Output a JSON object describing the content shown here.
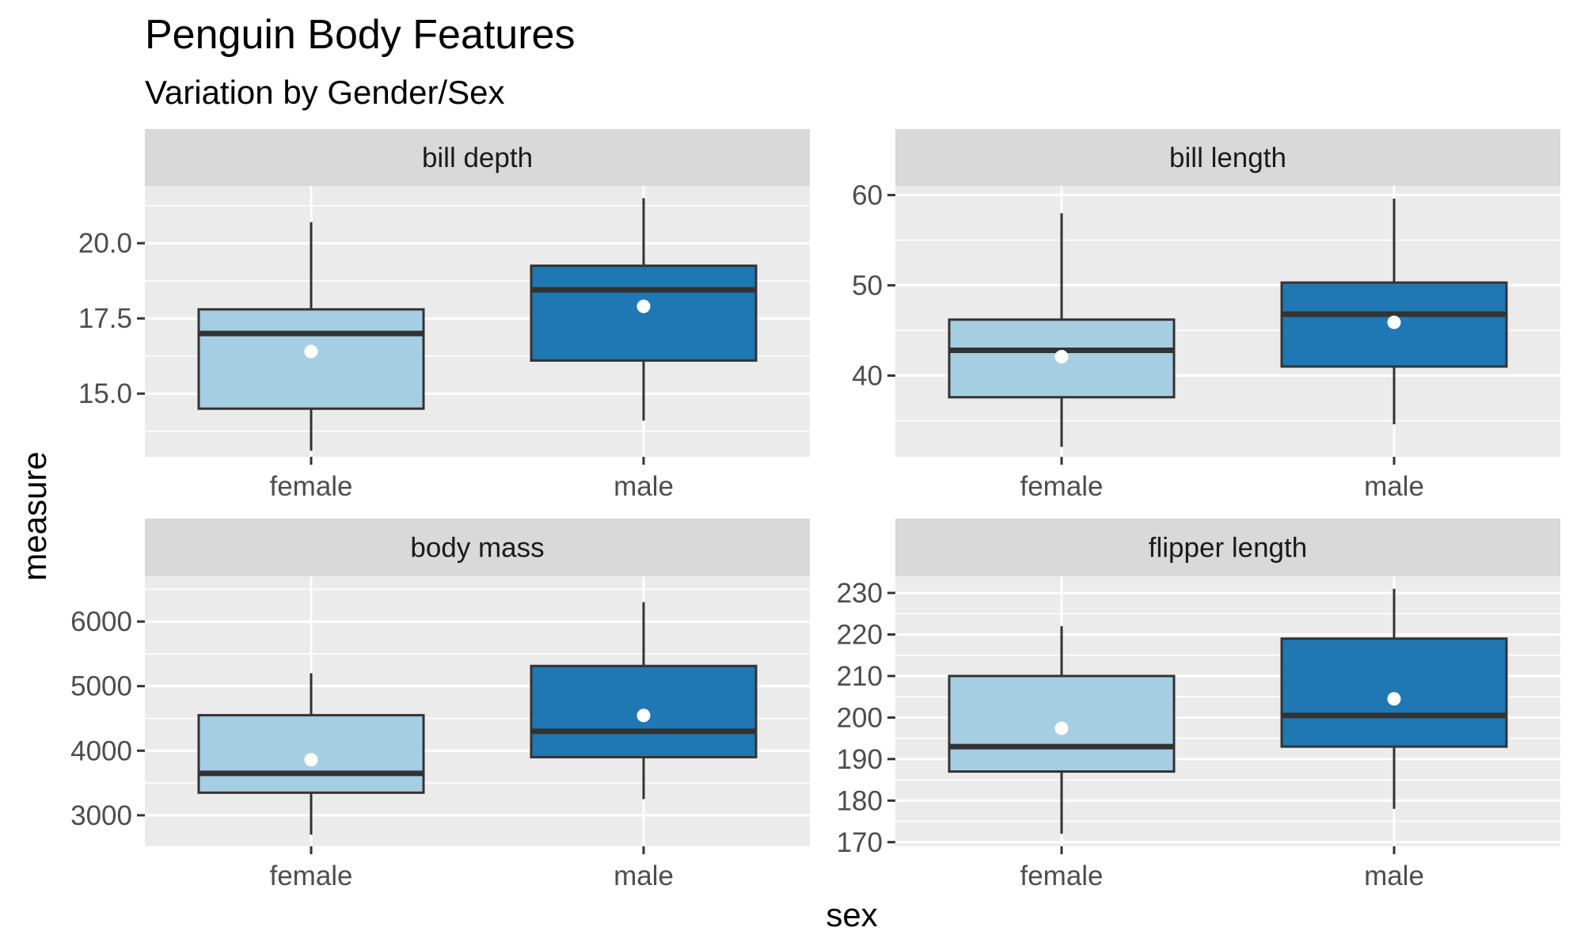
{
  "chart_data": {
    "type": "boxplot",
    "title": "Penguin Body Features",
    "subtitle": "Variation by Gender/Sex",
    "xlabel": "sex",
    "ylabel": "measure",
    "categories": [
      "female",
      "male"
    ],
    "colors": {
      "female": "#A6CEE3",
      "male": "#1F78B4",
      "panel_background": "#EBEBEB",
      "strip_background": "#D9D9D9",
      "grid": "#FFFFFF",
      "box_outline": "#333333",
      "mean_point": "#FFFFFF"
    },
    "grid": true,
    "legend": "none",
    "facets": [
      {
        "label": "bill depth",
        "ylim": [
          12.9,
          21.9
        ],
        "yticks": [
          15.0,
          17.5,
          20.0
        ],
        "ytick_labels": [
          "15.0",
          "17.5",
          "20.0"
        ],
        "boxes": [
          {
            "sex": "female",
            "whisker_low": 13.1,
            "q1": 14.5,
            "median": 17.0,
            "q3": 17.8,
            "whisker_high": 20.7,
            "mean": 16.4
          },
          {
            "sex": "male",
            "whisker_low": 14.1,
            "q1": 16.1,
            "median": 18.45,
            "q3": 19.25,
            "whisker_high": 21.5,
            "mean": 17.9
          }
        ]
      },
      {
        "label": "bill length",
        "ylim": [
          31.0,
          61.0
        ],
        "yticks": [
          40,
          50,
          60
        ],
        "ytick_labels": [
          "40",
          "50",
          "60"
        ],
        "boxes": [
          {
            "sex": "female",
            "whisker_low": 32.1,
            "q1": 37.6,
            "median": 42.8,
            "q3": 46.2,
            "whisker_high": 58.0,
            "mean": 42.1
          },
          {
            "sex": "male",
            "whisker_low": 34.6,
            "q1": 41.0,
            "median": 46.8,
            "q3": 50.3,
            "whisker_high": 59.6,
            "mean": 45.9
          }
        ]
      },
      {
        "label": "body mass",
        "ylim": [
          2520,
          6700
        ],
        "yticks": [
          3000,
          4000,
          5000,
          6000
        ],
        "ytick_labels": [
          "3000",
          "4000",
          "5000",
          "6000"
        ],
        "boxes": [
          {
            "sex": "female",
            "whisker_low": 2700,
            "q1": 3350,
            "median": 3650,
            "q3": 4550,
            "whisker_high": 5200,
            "mean": 3860
          },
          {
            "sex": "male",
            "whisker_low": 3250,
            "q1": 3900,
            "median": 4300,
            "q3": 5312,
            "whisker_high": 6300,
            "mean": 4546
          }
        ]
      },
      {
        "label": "flipper length",
        "ylim": [
          169,
          234
        ],
        "yticks": [
          170,
          180,
          190,
          200,
          210,
          220,
          230
        ],
        "ytick_labels": [
          "170",
          "180",
          "190",
          "200",
          "210",
          "220",
          "230"
        ],
        "boxes": [
          {
            "sex": "female",
            "whisker_low": 172,
            "q1": 187,
            "median": 193,
            "q3": 210,
            "whisker_high": 222,
            "mean": 197.4
          },
          {
            "sex": "male",
            "whisker_low": 178,
            "q1": 193,
            "median": 200.5,
            "q3": 219,
            "whisker_high": 231,
            "mean": 204.5
          }
        ]
      }
    ]
  }
}
